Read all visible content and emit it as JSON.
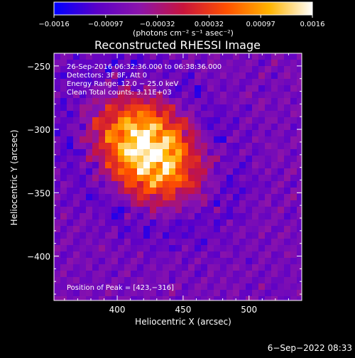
{
  "chart_data": {
    "type": "heatmap",
    "title": "Reconstructed RHESSI Image",
    "xlabel": "Heliocentric X (arcsec)",
    "ylabel": "Heliocentric Y (arcsec)",
    "xlim": [
      352,
      540
    ],
    "ylim": [
      -435,
      -240
    ],
    "xticks": [
      400,
      450,
      500
    ],
    "yticks": [
      -250,
      -300,
      -350,
      -400
    ],
    "xtick_labels": [
      "400",
      "450",
      "500"
    ],
    "ytick_labels": [
      "−250",
      "−300",
      "−350",
      "−400"
    ],
    "colorbar": {
      "range": [
        -0.0016,
        0.0016
      ],
      "tick_labels": [
        "−0.0016",
        "−0.00097",
        "−0.00032",
        "0.00032",
        "0.00097",
        "0.0016"
      ],
      "units_label": "(photons cm⁻² s⁻¹ asec⁻²)",
      "colors": [
        "#0000ff",
        "#5a00c8",
        "#8c14aa",
        "#c8143c",
        "#ff5000",
        "#ffb400",
        "#ffffff"
      ]
    },
    "source": {
      "peak_x": 423,
      "peak_y": -316
    },
    "annotations": [
      "26-Sep-2016 06:32:36.000 to 06:38:36.000",
      "Detectors: 3F 8F, Att 0",
      "Energy Range: 12.0 − 25.0 keV",
      "Clean     Total counts: 3.11E+03"
    ],
    "peak_label": "Position of Peak = [423,−316]"
  },
  "footer_date": "6−Sep−2022 08:33"
}
